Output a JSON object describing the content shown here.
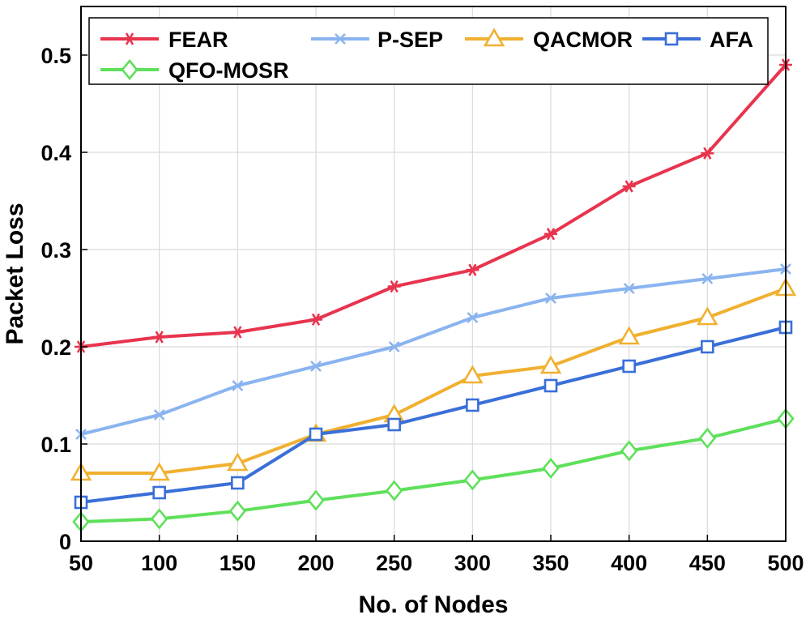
{
  "chart_data": {
    "type": "line",
    "title": "",
    "xlabel": "No. of Nodes",
    "ylabel": "Packet Loss",
    "x": [
      50,
      100,
      150,
      200,
      250,
      300,
      350,
      400,
      450,
      500
    ],
    "xlim": [
      50,
      500
    ],
    "ylim": [
      0,
      0.55
    ],
    "xticks": [
      "50",
      "100",
      "150",
      "200",
      "250",
      "300",
      "350",
      "400",
      "450",
      "500"
    ],
    "yticks": [
      0,
      0.1,
      0.2,
      0.3,
      0.4,
      0.5
    ],
    "ytick_labels": [
      "0",
      "0.1",
      "0.2",
      "0.3",
      "0.4",
      "0.5"
    ],
    "grid": true,
    "legend_position": "top",
    "series": [
      {
        "name": "FEAR",
        "color": "#e8344e",
        "marker": "asterisk",
        "values": [
          0.2,
          0.21,
          0.215,
          0.228,
          0.262,
          0.279,
          0.316,
          0.365,
          0.399,
          0.49
        ]
      },
      {
        "name": "P-SEP",
        "color": "#8ab4f0",
        "marker": "x",
        "values": [
          0.11,
          0.13,
          0.16,
          0.18,
          0.2,
          0.23,
          0.25,
          0.26,
          0.27,
          0.28
        ]
      },
      {
        "name": "QACMOR",
        "color": "#f0b030",
        "marker": "triangle",
        "values": [
          0.07,
          0.07,
          0.08,
          0.11,
          0.13,
          0.17,
          0.18,
          0.21,
          0.23,
          0.26
        ]
      },
      {
        "name": "AFA",
        "color": "#3a6fd8",
        "marker": "square",
        "values": [
          0.04,
          0.05,
          0.06,
          0.11,
          0.12,
          0.14,
          0.16,
          0.18,
          0.2,
          0.22
        ]
      },
      {
        "name": "QFO-MOSR",
        "color": "#5ee05a",
        "marker": "diamond",
        "values": [
          0.02,
          0.023,
          0.031,
          0.042,
          0.052,
          0.063,
          0.075,
          0.093,
          0.106,
          0.126
        ]
      }
    ]
  }
}
